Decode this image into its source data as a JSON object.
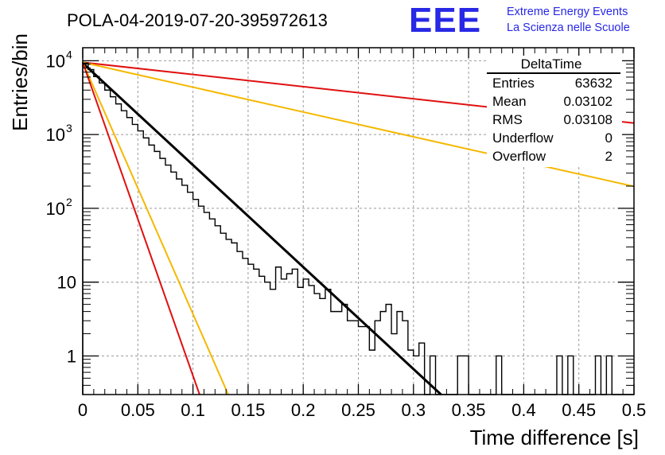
{
  "chart_data": {
    "type": "line",
    "title": "POLA-04-2019-07-20-395972613",
    "xlabel": "Time difference [s]",
    "ylabel": "Entries/bin",
    "xlim": [
      0,
      0.5
    ],
    "ylim": [
      0.3,
      15000
    ],
    "yscale": "log",
    "grid": true,
    "x_ticks": [
      "0",
      "0.05",
      "0.1",
      "0.15",
      "0.2",
      "0.25",
      "0.3",
      "0.35",
      "0.4",
      "0.45",
      "0.5"
    ],
    "y_ticks": [
      {
        "label": "1",
        "value": 1
      },
      {
        "label": "10",
        "value": 10
      },
      {
        "label": "10",
        "exp": "2",
        "value": 100
      },
      {
        "label": "10",
        "exp": "3",
        "value": 1000
      },
      {
        "label": "10",
        "exp": "4",
        "value": 10000
      }
    ],
    "histogram": {
      "name": "DeltaTime",
      "bin_width": 0.005,
      "counts": [
        9300,
        7600,
        6100,
        5000,
        4000,
        3250,
        2600,
        2100,
        1700,
        1370,
        1120,
        900,
        720,
        590,
        475,
        385,
        310,
        250,
        205,
        165,
        132,
        107,
        88,
        72,
        58,
        46,
        38,
        34,
        26,
        21,
        17.5,
        15,
        12,
        10,
        8,
        16,
        11,
        13,
        15,
        8.5,
        11,
        9,
        7,
        6,
        8,
        4,
        4,
        5,
        3,
        3,
        2.5,
        2.5,
        1.2,
        3,
        4,
        5,
        2,
        4,
        3,
        1.2,
        1,
        1.5,
        0.2,
        1,
        0.2,
        0,
        0,
        0,
        1,
        1,
        0,
        0,
        0,
        0,
        0,
        1,
        0,
        0,
        0,
        0,
        0,
        0,
        0,
        0,
        0,
        0,
        1,
        0,
        1,
        0,
        0,
        0,
        0,
        1,
        0,
        1,
        0,
        0,
        0,
        0
      ]
    },
    "series": [
      {
        "color": "#000000",
        "values": [
          [
            0,
            9300
          ],
          [
            0.325,
            0.3
          ]
        ]
      },
      {
        "color": "#e01010",
        "values": [
          [
            0,
            9500
          ],
          [
            0.5,
            1430
          ]
        ]
      },
      {
        "color": "#f5b800",
        "values": [
          [
            0,
            9500
          ],
          [
            0.5,
            198
          ]
        ]
      },
      {
        "color": "#f5b800",
        "values": [
          [
            0,
            9500
          ],
          [
            0.132,
            0.3
          ]
        ]
      },
      {
        "color": "#e01010",
        "values": [
          [
            0,
            9500
          ],
          [
            0.106,
            0.3
          ]
        ]
      }
    ]
  },
  "stats": {
    "title": "DeltaTime",
    "rows": [
      {
        "label": "Entries",
        "value": "63632"
      },
      {
        "label": "Mean",
        "value": "0.03102"
      },
      {
        "label": "RMS",
        "value": "0.03108"
      },
      {
        "label": "Underflow",
        "value": "0"
      },
      {
        "label": "Overflow",
        "value": "2"
      }
    ]
  },
  "logo": {
    "mark": "EEE",
    "line1": "Extreme Energy Events",
    "line2": "La Scienza nelle Scuole"
  }
}
